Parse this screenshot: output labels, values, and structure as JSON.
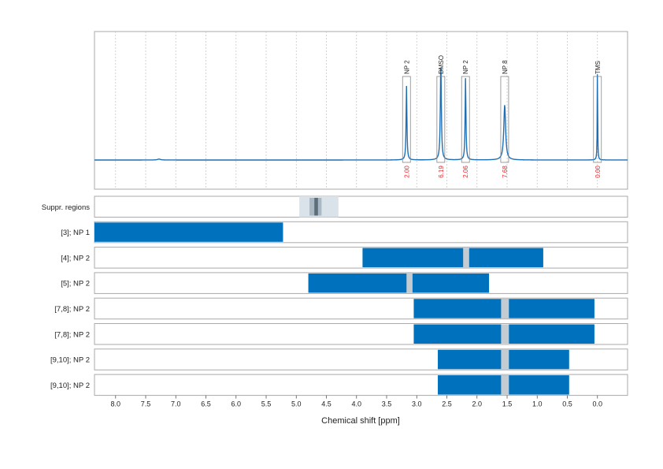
{
  "chart_data": {
    "type": "line",
    "xlabel": "Chemical shift [ppm]",
    "xlim": [
      8.35,
      -0.5
    ],
    "x_reversed": true,
    "ticks": [
      "8.0",
      "7.5",
      "7.0",
      "6.5",
      "6.0",
      "5.5",
      "5.0",
      "4.5",
      "4.0",
      "3.5",
      "3.0",
      "2.5",
      "2.0",
      "1.5",
      "1.0",
      "0.5",
      "0.0"
    ],
    "tick_values": [
      8.0,
      7.5,
      7.0,
      6.5,
      6.0,
      5.5,
      5.0,
      4.5,
      4.0,
      3.5,
      3.0,
      2.5,
      2.0,
      1.5,
      1.0,
      0.5,
      0.0
    ],
    "grid": true,
    "colors": {
      "spectrum": "#1f6fb4",
      "bar": "#0071bd",
      "gap": "#c4ccd2",
      "label_box": "#888888",
      "integral_text": "#e8262a",
      "suppr_light": "#dbe3ea",
      "suppr_mid": "#a8b8c4",
      "suppr_dark": "#5e6e78"
    },
    "spectrum": {
      "peaks": [
        {
          "ppm": 3.17,
          "height": 0.47,
          "width": 0.008
        },
        {
          "ppm": 2.6,
          "height": 0.62,
          "width": 0.01
        },
        {
          "ppm": 2.19,
          "height": 0.52,
          "width": 0.008
        },
        {
          "ppm": 1.54,
          "height": 0.35,
          "width": 0.018
        },
        {
          "ppm": 0.0,
          "height": 0.62,
          "width": 0.004
        }
      ],
      "annotations": [
        {
          "label": "NP 2",
          "ppm": 3.17,
          "integral": "2.00"
        },
        {
          "label": "DMSO",
          "ppm": 2.6,
          "integral": "6.19"
        },
        {
          "label": "NP 2",
          "ppm": 2.19,
          "integral": "2.06"
        },
        {
          "label": "NP 8",
          "ppm": 1.54,
          "integral": "7.68"
        },
        {
          "label": "TMS",
          "ppm": 0.0,
          "integral": "0.00"
        }
      ]
    },
    "suppression_region": {
      "label": "Suppr. regions",
      "outer": [
        4.95,
        4.3
      ],
      "inner": [
        4.78,
        4.58
      ],
      "core": [
        4.7,
        4.64
      ]
    },
    "rows": [
      {
        "label": "[3]; NP 1",
        "range": [
          8.35,
          5.22
        ],
        "gap": null
      },
      {
        "label": "[4]; NP 2",
        "range": [
          3.9,
          0.9
        ],
        "gap": [
          2.23,
          2.13
        ]
      },
      {
        "label": "[5]; NP 2",
        "range": [
          4.8,
          1.8
        ],
        "gap": [
          3.17,
          3.07
        ]
      },
      {
        "label": "[7,8]; NP 2",
        "range": [
          3.05,
          0.05
        ],
        "gap": [
          1.6,
          1.47
        ]
      },
      {
        "label": "[7,8]; NP 2",
        "range": [
          3.05,
          0.05
        ],
        "gap": [
          1.6,
          1.47
        ]
      },
      {
        "label": "[9,10]; NP 2",
        "range": [
          2.65,
          0.47
        ],
        "gap": [
          1.6,
          1.47
        ]
      },
      {
        "label": "[9,10]; NP 2",
        "range": [
          2.65,
          0.47
        ],
        "gap": [
          1.6,
          1.47
        ]
      }
    ]
  }
}
